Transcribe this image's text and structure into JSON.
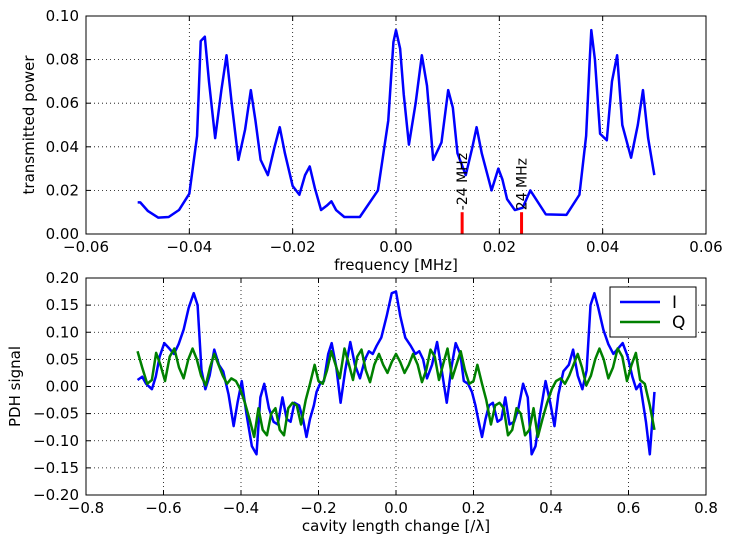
{
  "chart_data": [
    {
      "type": "line",
      "xlabel": "frequency [MHz]",
      "ylabel": "transmitted power",
      "xlim": [
        -0.06,
        0.06
      ],
      "ylim": [
        0.0,
        0.1
      ],
      "xticks": [
        "−0.06",
        "−0.04",
        "−0.02",
        "0.00",
        "0.02",
        "0.04",
        "0.06"
      ],
      "xtick_values": [
        -0.06,
        -0.04,
        -0.02,
        0.0,
        0.02,
        0.04,
        0.06
      ],
      "yticks": [
        "0.00",
        "0.02",
        "0.04",
        "0.06",
        "0.08",
        "0.10"
      ],
      "ytick_values": [
        0.0,
        0.02,
        0.04,
        0.06,
        0.08,
        0.1
      ],
      "grid": true,
      "series": [
        {
          "color": "#0000ff",
          "x": [
            -0.05,
            -0.0495,
            -0.048,
            -0.046,
            -0.044,
            -0.042,
            -0.04,
            -0.0385,
            -0.0378,
            -0.037,
            -0.0362,
            -0.035,
            -0.0338,
            -0.0328,
            -0.0318,
            -0.0305,
            -0.0292,
            -0.0281,
            -0.0272,
            -0.0262,
            -0.0248,
            -0.0235,
            -0.0225,
            -0.0215,
            -0.02,
            -0.0187,
            -0.0176,
            -0.0167,
            -0.0157,
            -0.0145,
            -0.0134,
            -0.0125,
            -0.0116,
            -0.01,
            -0.007,
            -0.0035,
            -0.0015,
            -0.0005,
            0.0,
            0.0008,
            0.0015,
            0.0025,
            0.0038,
            0.005,
            0.006,
            0.0072,
            0.0088,
            0.0101,
            0.011,
            0.0119,
            0.0135,
            0.0148,
            0.0156,
            0.0166,
            0.0185,
            0.0198,
            0.0206,
            0.0215,
            0.023,
            0.0245,
            0.026,
            0.029,
            0.033,
            0.0355,
            0.0368,
            0.0375,
            0.0378,
            0.0385,
            0.0395,
            0.0408,
            0.0418,
            0.0428,
            0.0438,
            0.0455,
            0.0468,
            0.0478,
            0.0488,
            0.05
          ],
          "y": [
            0.0145,
            0.0145,
            0.0105,
            0.0075,
            0.0078,
            0.011,
            0.0185,
            0.045,
            0.0885,
            0.0905,
            0.07,
            0.044,
            0.066,
            0.082,
            0.06,
            0.034,
            0.048,
            0.066,
            0.052,
            0.034,
            0.027,
            0.04,
            0.049,
            0.037,
            0.022,
            0.018,
            0.027,
            0.031,
            0.021,
            0.011,
            0.013,
            0.015,
            0.011,
            0.0078,
            0.0078,
            0.02,
            0.052,
            0.088,
            0.0935,
            0.085,
            0.064,
            0.041,
            0.06,
            0.082,
            0.068,
            0.034,
            0.042,
            0.066,
            0.058,
            0.037,
            0.027,
            0.04,
            0.049,
            0.037,
            0.02,
            0.03,
            0.025,
            0.016,
            0.011,
            0.012,
            0.02,
            0.009,
            0.0088,
            0.018,
            0.045,
            0.08,
            0.0935,
            0.08,
            0.046,
            0.043,
            0.07,
            0.082,
            0.05,
            0.035,
            0.05,
            0.066,
            0.044,
            0.027
          ]
        }
      ],
      "markers": [
        {
          "x": 0.0128,
          "height": 0.01,
          "color": "#ff0000",
          "label": "-24 MHz"
        },
        {
          "x": 0.0243,
          "height": 0.01,
          "color": "#ff0000",
          "label": "24 MHz"
        }
      ]
    },
    {
      "type": "line",
      "xlabel": "cavity length change [/λ]",
      "ylabel": "PDH signal",
      "xlim": [
        -0.8,
        0.8
      ],
      "ylim": [
        -0.2,
        0.2
      ],
      "xticks": [
        "−0.8",
        "−0.6",
        "−0.4",
        "−0.2",
        "0.0",
        "0.2",
        "0.4",
        "0.6",
        "0.8"
      ],
      "xtick_values": [
        -0.8,
        -0.6,
        -0.4,
        -0.2,
        0.0,
        0.2,
        0.4,
        0.6,
        0.8
      ],
      "yticks": [
        "−0.20",
        "−0.15",
        "−0.10",
        "−0.05",
        "0.00",
        "0.05",
        "0.10",
        "0.15",
        "0.20"
      ],
      "ytick_values": [
        -0.2,
        -0.15,
        -0.1,
        -0.05,
        0.0,
        0.05,
        0.1,
        0.15,
        0.2
      ],
      "grid": true,
      "legend": "top-right",
      "series": [
        {
          "name": "I",
          "color": "#0000ff",
          "x": [
            -0.667,
            -0.655,
            -0.645,
            -0.63,
            -0.62,
            -0.61,
            -0.598,
            -0.585,
            -0.573,
            -0.561,
            -0.548,
            -0.535,
            -0.522,
            -0.512,
            -0.502,
            -0.492,
            -0.481,
            -0.469,
            -0.457,
            -0.446,
            -0.432,
            -0.419,
            -0.409,
            -0.398,
            -0.386,
            -0.372,
            -0.36,
            -0.35,
            -0.34,
            -0.328,
            -0.316,
            -0.305,
            -0.293,
            -0.282,
            -0.272,
            -0.262,
            -0.25,
            -0.24,
            -0.231,
            -0.222,
            -0.212,
            -0.205,
            -0.196,
            -0.186,
            -0.175,
            -0.166,
            -0.154,
            -0.143,
            -0.131,
            -0.118,
            -0.106,
            -0.093,
            -0.08,
            -0.07,
            -0.06,
            -0.05,
            -0.038,
            -0.024,
            -0.011,
            0.0,
            0.011,
            0.024,
            0.038,
            0.05,
            0.06,
            0.07,
            0.08,
            0.093,
            0.106,
            0.118,
            0.131,
            0.143,
            0.154,
            0.166,
            0.175,
            0.186,
            0.196,
            0.205,
            0.212,
            0.222,
            0.231,
            0.24,
            0.25,
            0.262,
            0.272,
            0.282,
            0.293,
            0.305,
            0.316,
            0.328,
            0.34,
            0.35,
            0.36,
            0.372,
            0.386,
            0.398,
            0.409,
            0.419,
            0.432,
            0.446,
            0.457,
            0.469,
            0.481,
            0.492,
            0.502,
            0.512,
            0.522,
            0.535,
            0.548,
            0.561,
            0.573,
            0.585,
            0.598,
            0.61,
            0.62,
            0.63,
            0.645,
            0.655,
            0.667
          ],
          "y": [
            0.012,
            0.018,
            0.005,
            -0.005,
            0.018,
            0.055,
            0.08,
            0.07,
            0.06,
            0.078,
            0.105,
            0.145,
            0.172,
            0.15,
            0.03,
            -0.005,
            0.02,
            0.068,
            0.04,
            0.028,
            -0.015,
            -0.073,
            -0.03,
            0.01,
            -0.05,
            -0.11,
            -0.125,
            -0.02,
            0.005,
            -0.04,
            -0.065,
            -0.07,
            -0.02,
            -0.06,
            -0.065,
            -0.03,
            -0.035,
            -0.06,
            -0.093,
            -0.06,
            -0.035,
            -0.01,
            0.005,
            0.01,
            0.06,
            0.08,
            0.035,
            -0.03,
            0.03,
            0.082,
            0.04,
            0.015,
            0.05,
            0.065,
            0.06,
            0.075,
            0.09,
            0.13,
            0.172,
            0.175,
            0.13,
            0.09,
            0.075,
            0.06,
            0.065,
            0.05,
            0.015,
            0.04,
            0.082,
            0.03,
            -0.03,
            0.035,
            0.08,
            0.06,
            0.01,
            0.005,
            -0.01,
            -0.035,
            -0.06,
            -0.093,
            -0.06,
            -0.035,
            -0.03,
            -0.065,
            -0.06,
            -0.02,
            -0.07,
            -0.065,
            -0.04,
            0.005,
            -0.02,
            -0.125,
            -0.11,
            -0.05,
            0.01,
            -0.03,
            -0.073,
            -0.015,
            0.028,
            0.04,
            0.068,
            0.02,
            -0.005,
            0.03,
            0.15,
            0.172,
            0.145,
            0.105,
            0.078,
            0.06,
            0.07,
            0.08,
            0.055,
            0.018,
            -0.005,
            0.005,
            -0.065,
            -0.125,
            -0.01
          ]
        },
        {
          "name": "Q",
          "color": "#008000",
          "x": [
            -0.667,
            -0.655,
            -0.642,
            -0.63,
            -0.619,
            -0.608,
            -0.596,
            -0.584,
            -0.572,
            -0.56,
            -0.548,
            -0.536,
            -0.525,
            -0.514,
            -0.503,
            -0.491,
            -0.48,
            -0.469,
            -0.458,
            -0.447,
            -0.436,
            -0.425,
            -0.413,
            -0.402,
            -0.39,
            -0.378,
            -0.366,
            -0.355,
            -0.344,
            -0.333,
            -0.322,
            -0.311,
            -0.3,
            -0.289,
            -0.278,
            -0.267,
            -0.256,
            -0.245,
            -0.233,
            -0.222,
            -0.21,
            -0.2,
            -0.189,
            -0.178,
            -0.167,
            -0.156,
            -0.145,
            -0.133,
            -0.122,
            -0.111,
            -0.1,
            -0.089,
            -0.078,
            -0.067,
            -0.056,
            -0.044,
            -0.033,
            -0.022,
            -0.011,
            0.0,
            0.011,
            0.022,
            0.033,
            0.044,
            0.056,
            0.067,
            0.078,
            0.089,
            0.1,
            0.111,
            0.122,
            0.133,
            0.145,
            0.156,
            0.167,
            0.178,
            0.189,
            0.2,
            0.21,
            0.222,
            0.233,
            0.245,
            0.256,
            0.267,
            0.278,
            0.289,
            0.3,
            0.311,
            0.322,
            0.333,
            0.344,
            0.355,
            0.366,
            0.378,
            0.39,
            0.402,
            0.413,
            0.425,
            0.436,
            0.447,
            0.458,
            0.469,
            0.48,
            0.491,
            0.503,
            0.514,
            0.525,
            0.536,
            0.548,
            0.56,
            0.572,
            0.584,
            0.596,
            0.608,
            0.619,
            0.63,
            0.642,
            0.655,
            0.667
          ],
          "y": [
            0.065,
            0.035,
            0.005,
            0.012,
            0.062,
            0.04,
            0.01,
            0.055,
            0.07,
            0.035,
            0.015,
            0.05,
            0.07,
            0.05,
            0.02,
            0.002,
            0.035,
            0.06,
            0.04,
            0.02,
            0.005,
            0.015,
            0.01,
            -0.005,
            -0.03,
            -0.06,
            -0.093,
            -0.04,
            -0.08,
            -0.09,
            -0.05,
            -0.04,
            -0.08,
            -0.09,
            -0.04,
            -0.03,
            -0.035,
            -0.07,
            -0.025,
            0.005,
            0.04,
            0.01,
            0.005,
            0.03,
            0.065,
            0.04,
            0.015,
            0.07,
            0.042,
            0.012,
            0.055,
            0.068,
            0.03,
            0.008,
            0.04,
            0.06,
            0.04,
            0.025,
            0.045,
            0.06,
            0.045,
            0.025,
            0.04,
            0.06,
            0.04,
            0.008,
            0.03,
            0.068,
            0.055,
            0.012,
            0.042,
            0.07,
            0.015,
            0.04,
            0.065,
            0.03,
            0.005,
            0.01,
            0.04,
            0.005,
            -0.025,
            -0.07,
            -0.035,
            -0.03,
            -0.04,
            -0.09,
            -0.08,
            -0.04,
            -0.05,
            -0.09,
            -0.08,
            -0.04,
            -0.093,
            -0.06,
            -0.03,
            -0.005,
            0.01,
            0.015,
            0.005,
            0.02,
            0.04,
            0.06,
            0.035,
            0.002,
            0.02,
            0.05,
            0.07,
            0.05,
            0.015,
            0.035,
            0.07,
            0.055,
            0.01,
            0.04,
            0.062,
            0.012,
            0.005,
            -0.035,
            -0.08
          ]
        }
      ]
    }
  ]
}
